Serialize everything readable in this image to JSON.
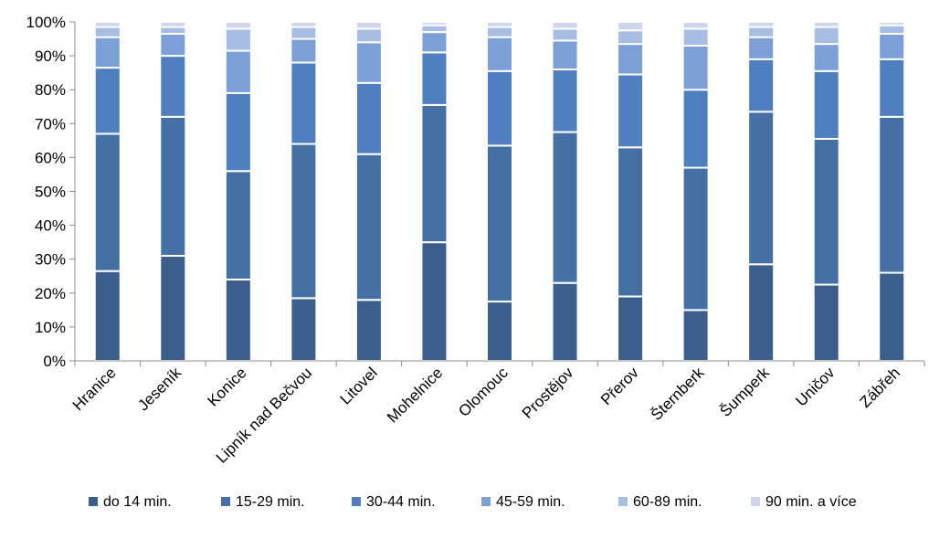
{
  "chart_data": {
    "type": "bar",
    "stacked": true,
    "normalized": true,
    "categories": [
      "Hranice",
      "Jeseník",
      "Konice",
      "Lipník nad Bečvou",
      "Litovel",
      "Mohelnice",
      "Olomouc",
      "Prostějov",
      "Přerov",
      "Šternberk",
      "Šumperk",
      "Uničov",
      "Zábřeh"
    ],
    "y_ticks": [
      "0%",
      "10%",
      "20%",
      "30%",
      "40%",
      "50%",
      "60%",
      "70%",
      "80%",
      "90%",
      "100%"
    ],
    "ylim": [
      0,
      100
    ],
    "grid": false,
    "legend_position": "bottom",
    "series": [
      {
        "name": "do 14 min.",
        "color": "#3b5e8c",
        "values": [
          26.5,
          31,
          24,
          18.5,
          18,
          35,
          17.5,
          23,
          19,
          15,
          28.5,
          22.5,
          26
        ]
      },
      {
        "name": "15-29 min.",
        "color": "#4470a6",
        "values": [
          40.5,
          41,
          32,
          45.5,
          43,
          40.5,
          46,
          44.5,
          44,
          42,
          45,
          43,
          46
        ]
      },
      {
        "name": "30-44 min.",
        "color": "#4f7fc0",
        "values": [
          19.5,
          18,
          23,
          24,
          21,
          15.5,
          22,
          18.5,
          21.5,
          23,
          15.5,
          20,
          17
        ]
      },
      {
        "name": "45-59 min.",
        "color": "#7b9fd6",
        "values": [
          9,
          6.5,
          12.5,
          7,
          12,
          6,
          10,
          8.5,
          9,
          13,
          6.5,
          8,
          7.5
        ]
      },
      {
        "name": "60-89 min.",
        "color": "#a8bde4",
        "values": [
          3,
          2,
          6.5,
          3.5,
          4,
          2,
          3,
          3.5,
          4,
          5,
          3,
          5,
          2.5
        ]
      },
      {
        "name": "90 min. a více",
        "color": "#cdd6ec",
        "values": [
          1.5,
          1.5,
          2,
          1.5,
          2,
          1,
          1.5,
          2,
          2.5,
          2,
          1.5,
          1.5,
          1
        ]
      }
    ]
  }
}
